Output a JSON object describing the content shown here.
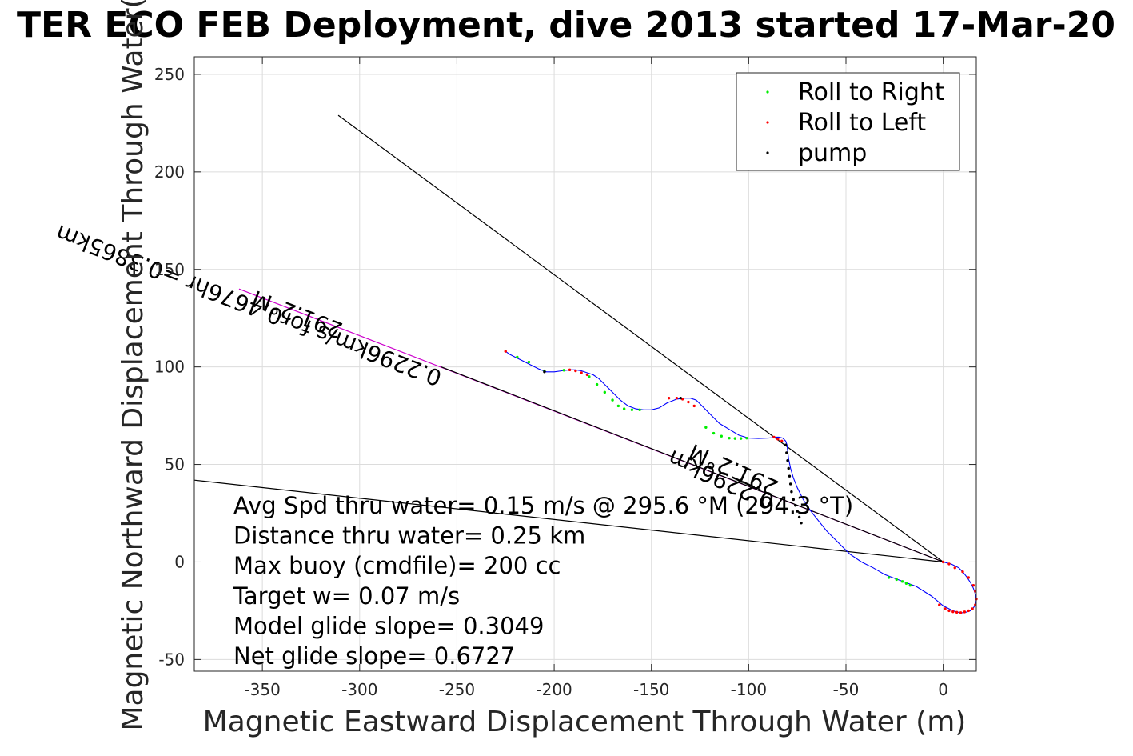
{
  "chart_data": {
    "type": "line",
    "title": "TER ECO FEB Deployment, dive 2013 started 17-Mar-20",
    "xlabel": "Magnetic Eastward Displacement Through Water (m)",
    "ylabel": "Magnetic Northward Displacement Through Water(",
    "xlim": [
      -385,
      17
    ],
    "ylim": [
      -56,
      259
    ],
    "x_ticks": [
      -350,
      -300,
      -250,
      -200,
      -150,
      -100,
      -50,
      0
    ],
    "y_ticks": [
      -50,
      0,
      50,
      100,
      150,
      200,
      250
    ],
    "grid": true,
    "legend_position": "top-right",
    "legend": [
      {
        "label": "Roll to Right",
        "color": "#00ee00"
      },
      {
        "label": "Roll to Left",
        "color": "#ff0000"
      },
      {
        "label": "pump",
        "color": "#000000"
      }
    ],
    "series": [
      {
        "name": "track",
        "color": "#0000ff",
        "x": [
          0,
          2,
          4,
          6,
          8,
          10,
          12,
          14,
          15.5,
          16.5,
          17,
          16.5,
          15.5,
          14,
          12,
          10,
          8,
          6,
          4,
          2,
          0,
          -3,
          -6,
          -10,
          -14,
          -18,
          -22,
          -26,
          -30,
          -36,
          -42,
          -48,
          -52,
          -56,
          -60,
          -64,
          -68,
          -72,
          -75,
          -77,
          -78.5,
          -79.5,
          -80,
          -80.3,
          -81,
          -82.5,
          -84.5,
          -86,
          -88,
          -90,
          -95,
          -100,
          -105,
          -110,
          -115,
          -120,
          -124,
          -127,
          -130,
          -133,
          -137,
          -142,
          -146,
          -150,
          -154,
          -158,
          -162,
          -166,
          -170,
          -174,
          -177,
          -180,
          -183,
          -186,
          -189,
          -192,
          -196,
          -200,
          -204,
          -208,
          -212,
          -216,
          -220,
          -223,
          -225
        ],
        "y": [
          0,
          -0.5,
          -1,
          -2,
          -3,
          -5,
          -7.5,
          -10.5,
          -13.5,
          -16.5,
          -19.5,
          -22,
          -23.5,
          -25,
          -25.7,
          -26,
          -25.8,
          -25.3,
          -24.5,
          -23.5,
          -22.5,
          -20,
          -17.5,
          -15,
          -12.5,
          -11,
          -9.5,
          -8,
          -6.5,
          -3,
          0,
          4,
          8,
          12,
          16,
          21,
          26,
          32,
          38,
          43,
          48,
          53,
          57,
          60,
          62,
          63.5,
          64,
          64,
          63.7,
          63.5,
          63.3,
          63.5,
          65,
          68,
          71,
          76,
          80,
          83,
          84,
          84,
          83.5,
          81.5,
          79,
          78,
          78,
          78.5,
          80,
          83,
          87,
          91,
          94,
          96,
          97,
          98,
          98.5,
          98.5,
          98,
          97.5,
          97.5,
          99,
          101,
          103,
          105,
          106.5,
          108
        ]
      }
    ],
    "markers": {
      "roll_right": {
        "color": "#00ee00",
        "x": [
          -219,
          -213,
          -205,
          -195,
          -182,
          -178,
          -174,
          -170,
          -167,
          -164,
          -160,
          -156,
          -122,
          -118,
          -114,
          -110,
          -107,
          -104,
          -101,
          -28,
          -24,
          -21,
          -19,
          -17
        ],
        "y": [
          105,
          102.5,
          98,
          98.3,
          95,
          91,
          87,
          83,
          80,
          78.5,
          78,
          78,
          69,
          66,
          64.5,
          63.5,
          63.3,
          63.3,
          63.5,
          -8,
          -9,
          -10,
          -11,
          -12
        ]
      },
      "roll_left": {
        "color": "#ff0000",
        "x": [
          -225,
          -192,
          -189,
          -186,
          -183,
          -141,
          -137,
          -134,
          -131,
          -128,
          -87,
          -85,
          -83,
          0,
          3,
          6,
          10,
          13,
          15.5,
          16.5,
          17,
          16.5,
          15,
          13,
          11,
          9,
          7,
          5,
          3,
          1,
          -2
        ],
        "y": [
          108,
          98.5,
          98,
          97,
          96,
          84,
          84,
          83.5,
          82,
          80,
          64,
          63,
          62,
          0,
          -1,
          -3,
          -5,
          -8,
          -12,
          -15,
          -19,
          -22,
          -24,
          -25,
          -25.6,
          -26,
          -25.8,
          -25.5,
          -25,
          -24,
          -22
        ]
      },
      "pump": {
        "color": "#000000",
        "x": [
          -205,
          -135,
          -81,
          -80.5,
          -80,
          -79.5,
          -79,
          -78.5,
          -78,
          -77,
          -76,
          -75,
          -74,
          -73
        ],
        "y": [
          97.5,
          84,
          60,
          56,
          52,
          48,
          44,
          40,
          36,
          32,
          29,
          26,
          23,
          20
        ]
      }
    },
    "reference_lines": [
      {
        "name": "heading-line",
        "color": "#cc00cc",
        "x": [
          -362,
          0
        ],
        "y": [
          140,
          0
        ]
      },
      {
        "name": "envelope-upper",
        "color": "#000000",
        "x": [
          -311,
          0
        ],
        "y": [
          229,
          0
        ]
      },
      {
        "name": "envelope-lower",
        "color": "#000000",
        "x": [
          -390,
          0
        ],
        "y": [
          42.5,
          0
        ]
      },
      {
        "name": "net-line",
        "color": "#000000",
        "x": [
          -258,
          0
        ],
        "y": [
          100,
          0
        ]
      }
    ],
    "rotated_labels": [
      {
        "text": "291.2°M",
        "x": -308,
        "y": 122,
        "angle": 201
      },
      {
        "text": "0.2296km/s for0.4676hr =0.3865km",
        "x": -257,
        "y": 97.5,
        "angle": 201
      },
      {
        "text": "291.2°M",
        "x": -84,
        "y": 41,
        "angle": 204
      },
      {
        "text": "0.2296km",
        "x": -86,
        "y": 34,
        "angle": 204
      }
    ],
    "annotations": [
      "Avg Spd thru water=  0.15 m/s @ 295.6 °M (294.3 °T)",
      "Distance thru water=  0.25 km",
      "Max buoy (cmdfile)= 200 cc",
      "Target w= 0.07 m/s",
      "Model glide slope= 0.3049",
      "Net glide slope= 0.6727"
    ]
  }
}
